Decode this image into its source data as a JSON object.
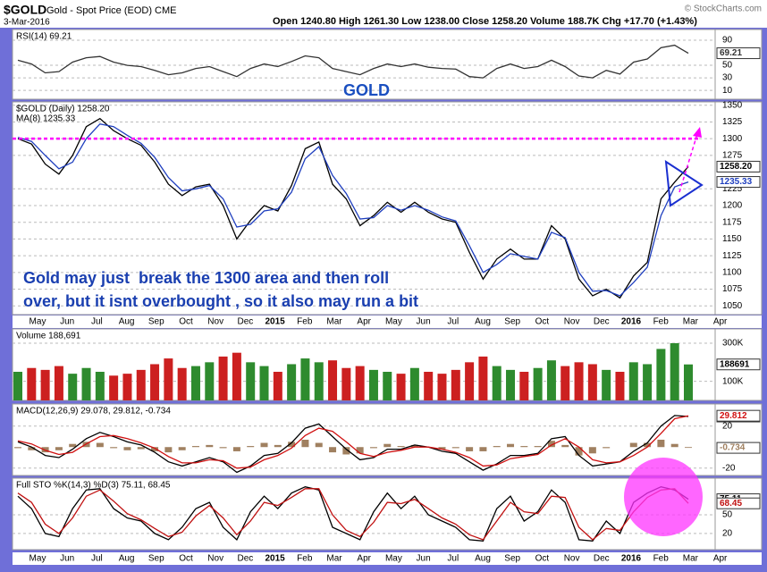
{
  "header": {
    "symbol": "$GOLD",
    "description": "Gold - Spot Price (EOD) CME",
    "date": "3-Mar-2016",
    "quote": "Open 1240.80 High 1261.30 Low 1238.00 Close 1258.20 Volume 188.7K Chg +17.70 (+1.43%)",
    "credit": "© StockCharts.com"
  },
  "chart_data": [
    {
      "type": "line",
      "legend": [
        "RSI(14) 69.21"
      ],
      "annotation": "GOLD",
      "ylim": [
        -4,
        107
      ],
      "yticks": [
        10,
        30,
        50,
        90
      ],
      "grid": true,
      "series": [
        {
          "color": "#333333",
          "values": [
            58,
            52,
            38,
            40,
            55,
            62,
            64,
            55,
            50,
            48,
            42,
            35,
            38,
            45,
            48,
            40,
            32,
            45,
            52,
            48,
            56,
            65,
            62,
            45,
            40,
            35,
            45,
            52,
            48,
            52,
            47,
            45,
            44,
            32,
            30,
            45,
            52,
            45,
            48,
            58,
            48,
            33,
            30,
            42,
            36,
            55,
            60,
            78,
            82,
            69.21
          ]
        }
      ]
    },
    {
      "type": "line",
      "legend": [
        "$GOLD (Daily) 1258.20",
        "MA(8) 1235.33"
      ],
      "annotations": [
        "Gold may just  break the 1300 area and then roll",
        "over, but it isnt overbought , so it also may run a bit"
      ],
      "x_labels": [
        "May",
        "Jun",
        "Jul",
        "Aug",
        "Sep",
        "Oct",
        "Nov",
        "Dec",
        "2015",
        "Feb",
        "Mar",
        "Apr",
        "May",
        "Jun",
        "Jul",
        "Aug",
        "Sep",
        "Oct",
        "Nov",
        "Dec",
        "2016",
        "Feb",
        "Mar",
        "Apr"
      ],
      "resistance": 1300,
      "resistance_color": "#ff00ff",
      "ylim": [
        1037,
        1355
      ],
      "yticks": [
        1050,
        1075,
        1100,
        1125,
        1150,
        1175,
        1200,
        1225,
        1275,
        1300,
        1325,
        1350
      ],
      "grid": true,
      "series": [
        {
          "color": "#000000",
          "last_label": "1258.20",
          "values": [
            1300,
            1292,
            1262,
            1247,
            1275,
            1318,
            1330,
            1312,
            1300,
            1290,
            1265,
            1232,
            1215,
            1228,
            1232,
            1200,
            1150,
            1178,
            1200,
            1192,
            1230,
            1285,
            1295,
            1232,
            1210,
            1170,
            1185,
            1205,
            1190,
            1205,
            1190,
            1180,
            1175,
            1130,
            1090,
            1120,
            1135,
            1120,
            1120,
            1170,
            1150,
            1090,
            1065,
            1075,
            1062,
            1095,
            1115,
            1210,
            1235,
            1258.2
          ]
        },
        {
          "color": "#1f3fbf",
          "values": [
            1302,
            1296,
            1275,
            1255,
            1265,
            1300,
            1322,
            1318,
            1305,
            1293,
            1272,
            1242,
            1222,
            1225,
            1230,
            1210,
            1168,
            1172,
            1192,
            1195,
            1220,
            1270,
            1288,
            1245,
            1218,
            1180,
            1182,
            1200,
            1193,
            1200,
            1193,
            1183,
            1177,
            1140,
            1100,
            1112,
            1128,
            1124,
            1120,
            1160,
            1152,
            1100,
            1072,
            1073,
            1065,
            1085,
            1108,
            1185,
            1228,
            1235.33
          ]
        }
      ]
    },
    {
      "type": "bar",
      "legend": [
        "Volume 188,691"
      ],
      "up_color": "#2e8b2e",
      "down_color": "#cc2020",
      "ylim": [
        0,
        375000
      ],
      "yticks": [
        {
          "value": 100000,
          "label": "100K"
        },
        {
          "value": 300000,
          "label": "300K"
        }
      ],
      "grid": true,
      "values": [
        150000,
        170000,
        160000,
        180000,
        140000,
        170000,
        150000,
        130000,
        140000,
        160000,
        190000,
        220000,
        170000,
        180000,
        200000,
        230000,
        250000,
        200000,
        180000,
        150000,
        190000,
        220000,
        200000,
        210000,
        170000,
        180000,
        160000,
        150000,
        140000,
        170000,
        150000,
        140000,
        160000,
        200000,
        230000,
        180000,
        160000,
        150000,
        170000,
        210000,
        180000,
        200000,
        190000,
        160000,
        150000,
        200000,
        190000,
        270000,
        300000,
        188691
      ]
    },
    {
      "type": "line",
      "legend": [
        "MACD(12,26,9) 29.078, 29.812, -0.734"
      ],
      "ylim": [
        -27,
        41
      ],
      "yticks": [
        -20,
        20
      ],
      "grid": true,
      "histogram_color": "#a08060",
      "histogram": [
        -1,
        -3,
        -5,
        -3,
        3,
        5,
        4,
        -1,
        -3,
        -2,
        -4,
        -5,
        -3,
        1,
        2,
        -1,
        -4,
        1,
        4,
        2,
        5,
        7,
        4,
        -5,
        -7,
        -6,
        -1,
        3,
        1,
        2,
        0,
        -2,
        -1,
        -4,
        -4,
        1,
        3,
        1,
        1,
        6,
        2,
        -8,
        -6,
        -1,
        0,
        4,
        4,
        7,
        3,
        -0.734
      ],
      "series": [
        {
          "color": "#000000",
          "values": [
            5,
            0,
            -8,
            -10,
            -2,
            8,
            14,
            10,
            5,
            2,
            -5,
            -14,
            -18,
            -14,
            -10,
            -14,
            -24,
            -18,
            -8,
            -6,
            4,
            18,
            22,
            10,
            -2,
            -12,
            -10,
            -2,
            -2,
            2,
            0,
            -4,
            -6,
            -14,
            -22,
            -16,
            -8,
            -8,
            -6,
            8,
            10,
            -8,
            -18,
            -16,
            -14,
            -4,
            4,
            20,
            30,
            29.078
          ]
        },
        {
          "color": "#d01010",
          "values": [
            6,
            3,
            -3,
            -7,
            -5,
            3,
            10,
            11,
            8,
            4,
            -1,
            -9,
            -15,
            -15,
            -12,
            -13,
            -20,
            -19,
            -12,
            -8,
            -1,
            11,
            18,
            15,
            5,
            -6,
            -9,
            -5,
            -3,
            0,
            0,
            -2,
            -5,
            -10,
            -18,
            -17,
            -11,
            -9,
            -7,
            2,
            8,
            0,
            -12,
            -15,
            -14,
            -8,
            0,
            13,
            27,
            29.812
          ]
        }
      ]
    },
    {
      "type": "line",
      "legend": [
        "Full STO %K(14,3) %D(3) 75.11, 68.45"
      ],
      "ylim": [
        -6,
        109
      ],
      "yticks": [
        20,
        50
      ],
      "grid": true,
      "highlight_color": "#ff33ff",
      "series": [
        {
          "color": "#000000",
          "values": [
            80,
            60,
            20,
            15,
            60,
            90,
            92,
            60,
            45,
            40,
            20,
            10,
            30,
            60,
            70,
            30,
            10,
            55,
            80,
            60,
            85,
            95,
            90,
            30,
            20,
            10,
            55,
            85,
            60,
            80,
            50,
            40,
            30,
            10,
            8,
            60,
            80,
            40,
            55,
            90,
            70,
            10,
            8,
            40,
            20,
            70,
            85,
            95,
            90,
            75.11
          ]
        },
        {
          "color": "#c01010",
          "values": [
            85,
            70,
            35,
            20,
            45,
            80,
            90,
            72,
            52,
            42,
            28,
            15,
            22,
            48,
            65,
            45,
            18,
            40,
            70,
            65,
            78,
            92,
            92,
            50,
            25,
            15,
            38,
            70,
            68,
            75,
            60,
            45,
            35,
            18,
            10,
            40,
            70,
            55,
            52,
            80,
            78,
            30,
            10,
            28,
            25,
            55,
            78,
            90,
            92,
            68.45
          ]
        }
      ]
    }
  ]
}
